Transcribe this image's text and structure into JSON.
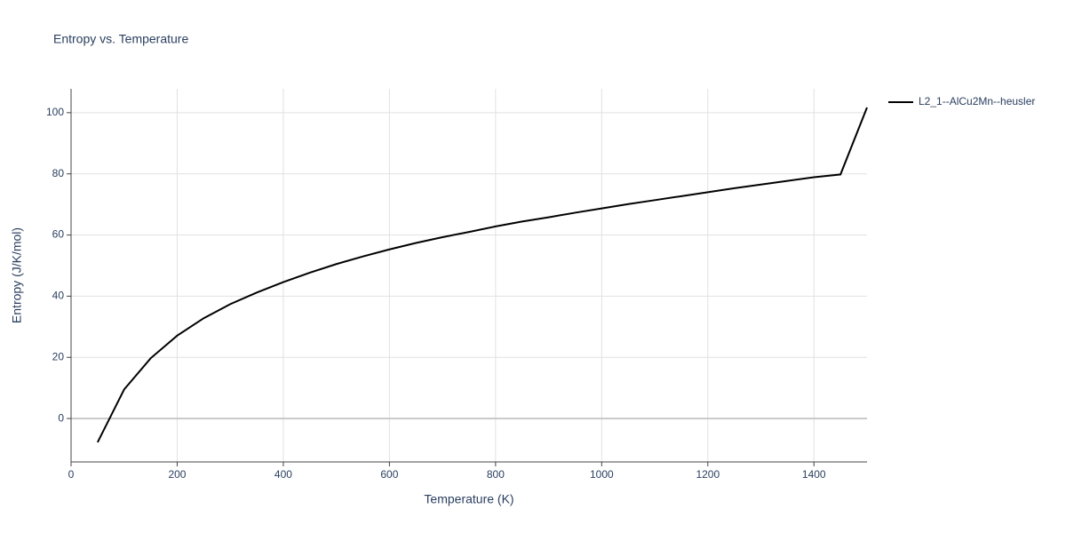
{
  "chart_data": {
    "type": "line",
    "title": "Entropy vs. Temperature",
    "x_label": "Temperature (K)",
    "y_label": "Entropy (J/K/mol)",
    "x": [
      50,
      100,
      150,
      200,
      250,
      300,
      350,
      400,
      450,
      500,
      550,
      600,
      650,
      700,
      750,
      800,
      850,
      900,
      950,
      1000,
      1050,
      1100,
      1150,
      1200,
      1250,
      1300,
      1350,
      1400,
      1450,
      1500
    ],
    "series": [
      {
        "name": "L2_1--AlCu2Mn--heusler",
        "color": "#000000",
        "values": [
          -7.8,
          9.5,
          19.7,
          27.1,
          32.8,
          37.4,
          41.2,
          44.6,
          47.7,
          50.5,
          53.0,
          55.3,
          57.4,
          59.3,
          61.0,
          62.8,
          64.4,
          65.8,
          67.3,
          68.7,
          70.1,
          71.4,
          72.7,
          74.0,
          75.3,
          76.5,
          77.7,
          78.9,
          79.8,
          101.7
        ]
      }
    ],
    "xlim": [
      0,
      1500
    ],
    "xticks": [
      0,
      200,
      400,
      600,
      800,
      1000,
      1200,
      1400
    ],
    "ylim": [
      -14.2,
      107.8
    ],
    "yticks": [
      0,
      20,
      40,
      60,
      80,
      100
    ],
    "grid": true,
    "legend_position": "right"
  }
}
